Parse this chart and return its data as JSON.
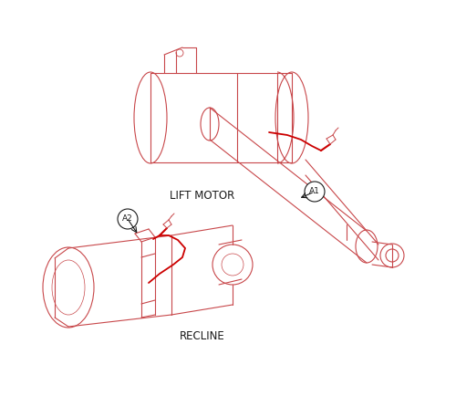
{
  "bg_color": "#ffffff",
  "outline_color": "#c8474a",
  "wire_color": "#cc0000",
  "label_color": "#1a1a1a",
  "circle_color": "#1a1a1a",
  "lift_label": "LIFT MOTOR",
  "recline_label": "RECLINE",
  "a1_label": "A1",
  "a2_label": "A2",
  "figsize": [
    5.0,
    4.34
  ],
  "dpi": 100
}
